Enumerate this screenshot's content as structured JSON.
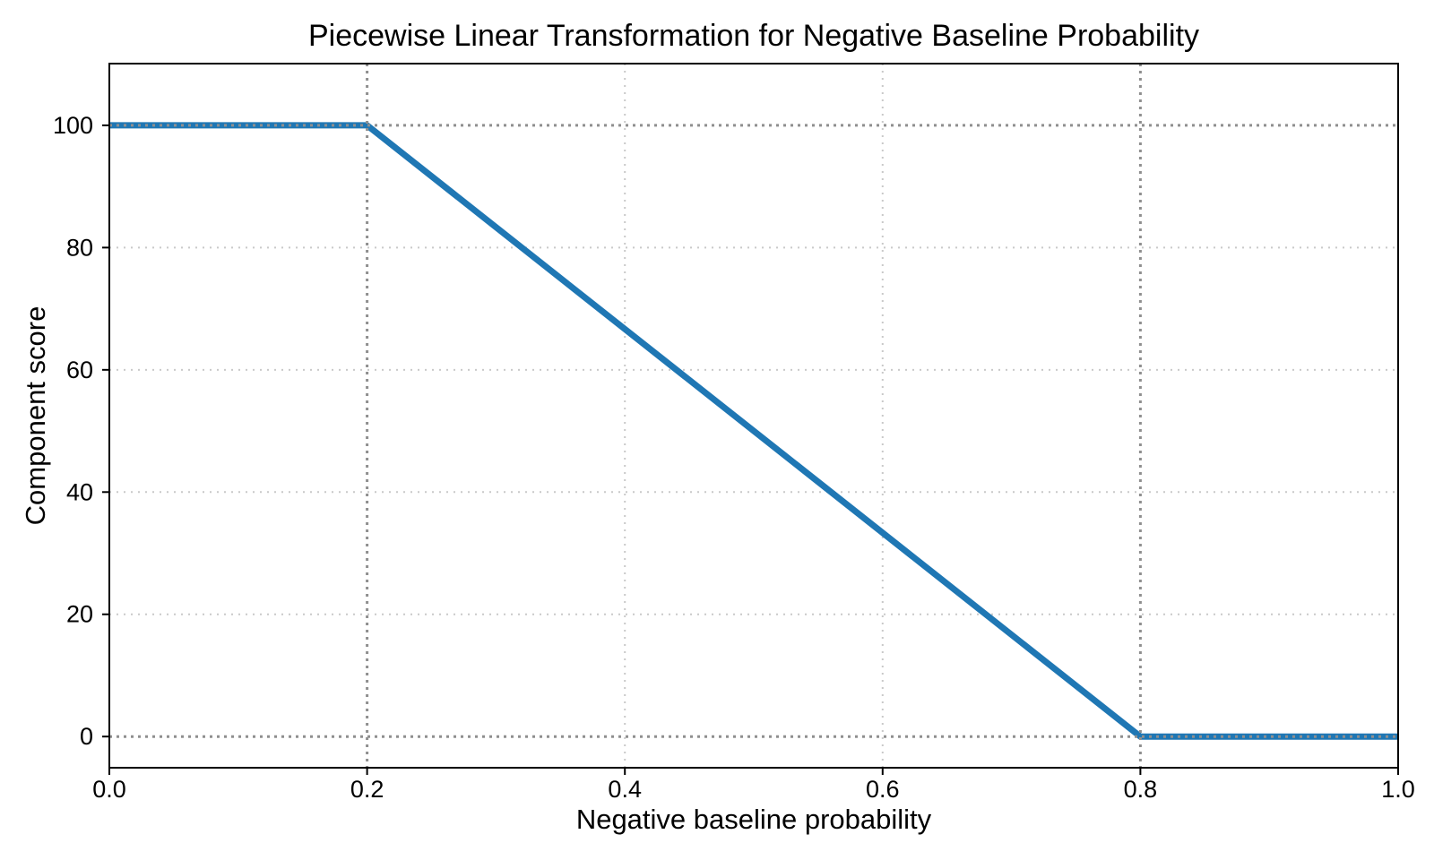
{
  "chart_data": {
    "type": "line",
    "title": "Piecewise Linear Transformation for Negative Baseline Probability",
    "xlabel": "Negative baseline probability",
    "ylabel": "Component score",
    "xlim": [
      0.0,
      1.0
    ],
    "ylim": [
      -5.1,
      110.1
    ],
    "x_ticks": [
      {
        "value": 0.0,
        "label": "0.0"
      },
      {
        "value": 0.2,
        "label": "0.2"
      },
      {
        "value": 0.4,
        "label": "0.4"
      },
      {
        "value": 0.6,
        "label": "0.6"
      },
      {
        "value": 0.8,
        "label": "0.8"
      },
      {
        "value": 1.0,
        "label": "1.0"
      }
    ],
    "y_ticks": [
      {
        "value": 0,
        "label": "0"
      },
      {
        "value": 20,
        "label": "20"
      },
      {
        "value": 40,
        "label": "40"
      },
      {
        "value": 60,
        "label": "60"
      },
      {
        "value": 80,
        "label": "80"
      },
      {
        "value": 100,
        "label": "100"
      }
    ],
    "grid": {
      "on": true,
      "style": "dotted",
      "color": "#c9c9c9",
      "linewidth": 2
    },
    "reference_lines": {
      "style": "dotted",
      "color": "#8f8f8f",
      "linewidth": 3,
      "x_values": [
        0.2,
        0.8
      ],
      "y_values": [
        100,
        0
      ]
    },
    "series": [
      {
        "name": "piecewise-linear-score",
        "color": "#1f77b4",
        "linewidth": 7,
        "points": [
          [
            0.0,
            100
          ],
          [
            0.2,
            100
          ],
          [
            0.8,
            0
          ],
          [
            1.0,
            0
          ]
        ]
      }
    ],
    "axis_color": "#000000"
  }
}
